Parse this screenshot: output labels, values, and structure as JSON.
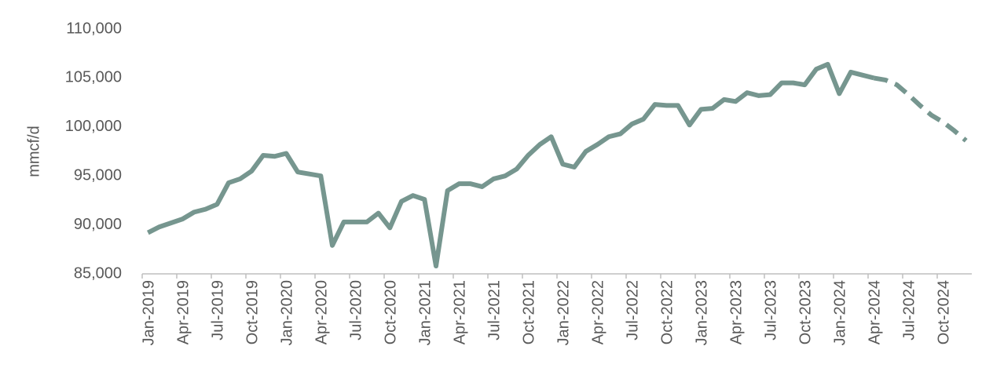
{
  "chart_data": {
    "type": "line",
    "y_label": "mmcf/d",
    "categories": [
      "Jan-2019",
      null,
      null,
      "Apr-2019",
      null,
      null,
      "Jul-2019",
      null,
      null,
      "Oct-2019",
      null,
      null,
      "Jan-2020",
      null,
      null,
      "Apr-2020",
      null,
      null,
      "Jul-2020",
      null,
      null,
      "Oct-2020",
      null,
      null,
      "Jan-2021",
      null,
      null,
      "Apr-2021",
      null,
      null,
      "Jul-2021",
      null,
      null,
      "Oct-2021",
      null,
      null,
      "Jan-2022",
      null,
      null,
      "Apr-2022",
      null,
      null,
      "Jul-2022",
      null,
      null,
      "Oct-2022",
      null,
      null,
      "Jan-2023",
      null,
      null,
      "Apr-2023",
      null,
      null,
      "Jul-2023",
      null,
      null,
      "Oct-2023",
      null,
      null,
      "Jan-2024",
      null,
      null,
      "Apr-2024",
      null,
      null,
      "Jul-2024",
      null,
      null,
      "Oct-2024",
      null,
      null
    ],
    "series": [
      {
        "color": "#76968f",
        "dashed": false,
        "values": [
          89200,
          89800,
          90200,
          90600,
          91300,
          91600,
          92100,
          94300,
          94700,
          95500,
          97100,
          97000,
          97300,
          95400,
          95200,
          95000,
          87900,
          90300,
          90300,
          90300,
          91200,
          89700,
          92400,
          93000,
          92600,
          85800,
          93500,
          94200,
          94200,
          93900,
          94700,
          95000,
          95700,
          97100,
          98200,
          99000,
          96200,
          95900,
          97500,
          98200,
          99000,
          99300,
          100300,
          100800,
          102300,
          102200,
          102200,
          100200,
          101800,
          101900,
          102800,
          102600,
          103500,
          103200,
          103300,
          104500,
          104500,
          104300,
          105900,
          106400,
          103400,
          105600,
          105300,
          105000,
          null,
          null,
          null,
          null,
          null,
          null,
          null,
          null
        ]
      },
      {
        "color": "#76968f",
        "dashed": true,
        "values": [
          null,
          null,
          null,
          null,
          null,
          null,
          null,
          null,
          null,
          null,
          null,
          null,
          null,
          null,
          null,
          null,
          null,
          null,
          null,
          null,
          null,
          null,
          null,
          null,
          null,
          null,
          null,
          null,
          null,
          null,
          null,
          null,
          null,
          null,
          null,
          null,
          null,
          null,
          null,
          null,
          null,
          null,
          null,
          null,
          null,
          null,
          null,
          null,
          null,
          null,
          null,
          null,
          null,
          null,
          null,
          null,
          null,
          null,
          null,
          null,
          null,
          null,
          null,
          105000,
          104800,
          104300,
          103300,
          102200,
          101200,
          100500,
          99600,
          98600
        ]
      }
    ],
    "ylim": [
      85000,
      110000
    ],
    "yticks": [
      {
        "value": 85000,
        "label": "85,000"
      },
      {
        "value": 90000,
        "label": "90,000"
      },
      {
        "value": 95000,
        "label": "95,000"
      },
      {
        "value": 100000,
        "label": "100,000"
      },
      {
        "value": 105000,
        "label": "105,000"
      },
      {
        "value": 110000,
        "label": "110,000"
      }
    ],
    "grid": false
  }
}
